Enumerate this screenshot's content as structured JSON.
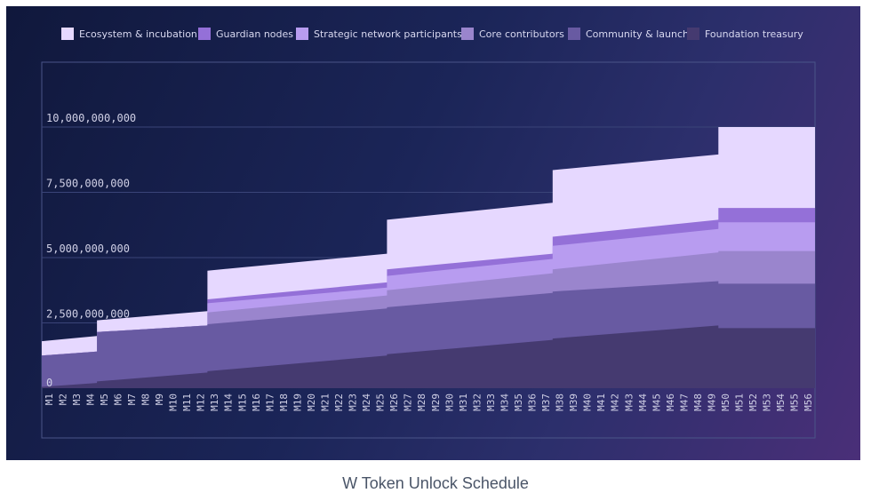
{
  "caption": "W Token Unlock Schedule",
  "chart_data": {
    "type": "area",
    "stacked": true,
    "step": true,
    "title": "W Token Unlock Schedule",
    "xlabel": "",
    "ylabel": "",
    "ylim": [
      0,
      12500000000
    ],
    "y_ticks": [
      0,
      2500000000,
      5000000000,
      7500000000,
      10000000000
    ],
    "y_tick_labels": [
      "0",
      "2,500,000,000",
      "5,000,000,000",
      "7,500,000,000",
      "10,000,000,000"
    ],
    "legend_position": "top",
    "categories": [
      "M1",
      "M2",
      "M3",
      "M4",
      "M5",
      "M6",
      "M7",
      "M8",
      "M9",
      "M10",
      "M11",
      "M12",
      "M13",
      "M14",
      "M15",
      "M16",
      "M17",
      "M18",
      "M19",
      "M20",
      "M21",
      "M22",
      "M23",
      "M24",
      "M25",
      "M26",
      "M27",
      "M28",
      "M29",
      "M30",
      "M31",
      "M32",
      "M33",
      "M34",
      "M35",
      "M36",
      "M37",
      "M38",
      "M39",
      "M40",
      "M41",
      "M42",
      "M43",
      "M44",
      "M45",
      "M46",
      "M47",
      "M48",
      "M49",
      "M50",
      "M51",
      "M52",
      "M53",
      "M54",
      "M55",
      "M56"
    ],
    "series": [
      {
        "name": "Foundation treasury",
        "color": "#453a70",
        "start": [
          0,
          50000000,
          1,
          1400000000,
          1,
          2300000000
        ],
        "values_note": "piecewise: [firstMonth, startValue, ...]"
      },
      {
        "name": "Community & launch",
        "color": "#685aa2"
      },
      {
        "name": "Core contributors",
        "color": "#9a85cd"
      },
      {
        "name": "Strategic network participants",
        "color": "#b89cf0"
      },
      {
        "name": "Guardian nodes",
        "color": "#9470d8"
      },
      {
        "name": "Ecosystem & incubation",
        "color": "#e6d8ff"
      }
    ],
    "cumulative_totals": {
      "M1": 1800000000,
      "M4": 2000000000,
      "M5": 2600000000,
      "M12": 2950000000,
      "M13": 4500000000,
      "M25": 5150000000,
      "M26": 6450000000,
      "M37": 7100000000,
      "M38": 8350000000,
      "M49": 8950000000,
      "M50": 10000000000,
      "M56": 10000000000
    },
    "layer_tops": {
      "months": [
        1,
        4,
        5,
        12,
        13,
        25,
        26,
        37,
        38,
        49,
        50,
        56
      ],
      "Foundation treasury": [
        50000000,
        200000000,
        260000000,
        600000000,
        650000000,
        1250000000,
        1300000000,
        1850000000,
        1900000000,
        2400000000,
        2300000000,
        2300000000
      ],
      "Community & launch": [
        1250000000,
        1400000000,
        2150000000,
        2400000000,
        2450000000,
        3050000000,
        3100000000,
        3650000000,
        3700000000,
        4100000000,
        4000000000,
        4000000000
      ],
      "Core contributors": [
        1250000000,
        1400000000,
        2150000000,
        2400000000,
        2900000000,
        3550000000,
        3750000000,
        4400000000,
        4550000000,
        5200000000,
        5250000000,
        5250000000
      ],
      "Strategic network participants": [
        1250000000,
        1400000000,
        2150000000,
        2400000000,
        3250000000,
        3850000000,
        4300000000,
        4950000000,
        5450000000,
        6100000000,
        6350000000,
        6350000000
      ],
      "Guardian nodes": [
        1250000000,
        1400000000,
        2150000000,
        2400000000,
        3400000000,
        4050000000,
        4550000000,
        5150000000,
        5800000000,
        6450000000,
        6900000000,
        6900000000
      ],
      "Ecosystem & incubation": [
        1800000000,
        2000000000,
        2600000000,
        2950000000,
        4500000000,
        5150000000,
        6450000000,
        7100000000,
        8350000000,
        8950000000,
        10000000000,
        10000000000
      ]
    },
    "legend": [
      "Ecosystem & incubation",
      "Guardian nodes",
      "Strategic network participants",
      "Core contributors",
      "Community & launch",
      "Foundation treasury"
    ],
    "legend_colors": [
      "#e6d8ff",
      "#9470d8",
      "#b89cf0",
      "#9a85cd",
      "#685aa2",
      "#453a70"
    ]
  }
}
